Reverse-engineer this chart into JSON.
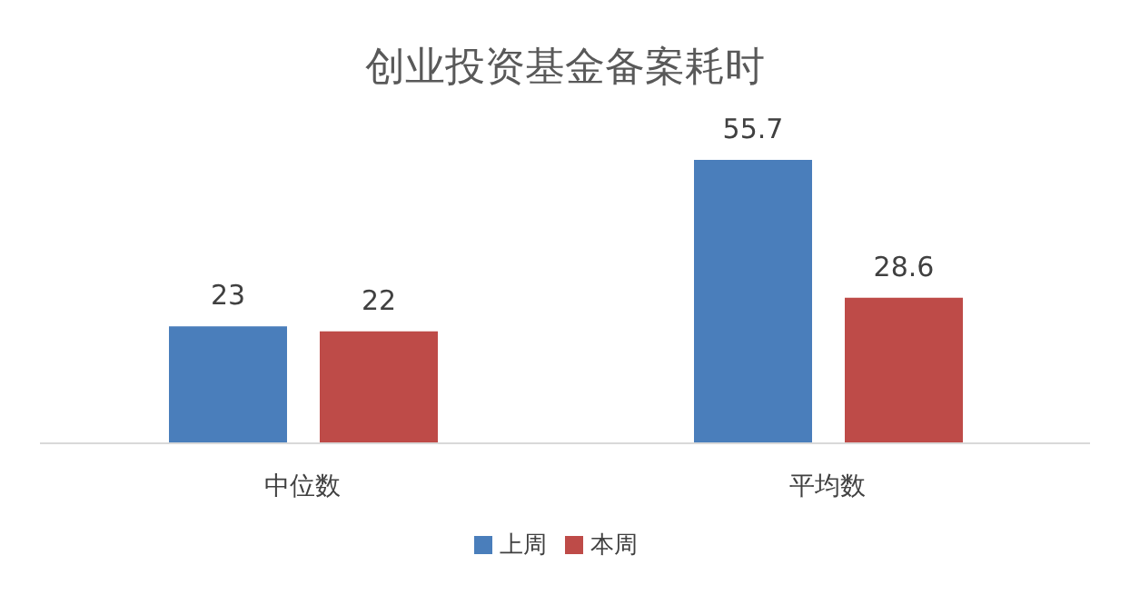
{
  "chart_data": {
    "type": "bar",
    "title": "创业投资基金备案耗时",
    "categories": [
      "中位数",
      "平均数"
    ],
    "series": [
      {
        "name": "上周",
        "color": "#4a7ebb",
        "values": [
          23,
          55.7
        ]
      },
      {
        "name": "本周",
        "color": "#be4b48",
        "values": [
          22,
          28.6
        ]
      }
    ],
    "data_labels": true,
    "legend": "bottom",
    "grid": false
  }
}
